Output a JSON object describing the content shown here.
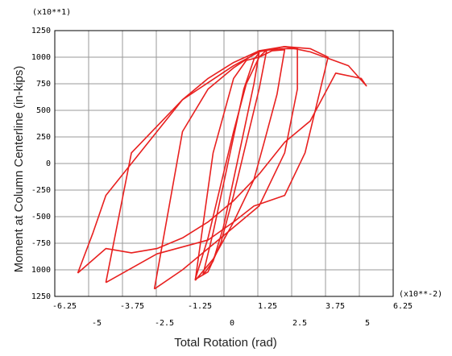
{
  "chart_data": {
    "type": "line",
    "title": "",
    "xlabel": "Total Rotation (rad)",
    "ylabel": "Moment at Column Centerline (in-kips)",
    "x_multiplier_label": "(x10**-2)",
    "y_multiplier_label": "(x10**1)",
    "xlim": [
      -0.07,
      0.0625
    ],
    "ylim": [
      -12500,
      12500
    ],
    "x_ticks_upper": [
      "-6.25",
      "-3.75",
      "-1.25",
      "1.25",
      "3.75",
      "6.25"
    ],
    "x_ticks_lower": [
      "-5",
      "-2.5",
      "0",
      "2.5",
      "5"
    ],
    "y_ticks": [
      "1250",
      "1000",
      "750",
      "500",
      "250",
      "0",
      "-250",
      "-500",
      "-750",
      "1000",
      "1250"
    ],
    "grid": true,
    "line_color": "#e8201f",
    "series": [
      {
        "x": [
          -0.012,
          -0.008,
          -0.004,
          0.0,
          0.004,
          0.008,
          0.01,
          0.008,
          0.004,
          0.0,
          -0.004,
          -0.008,
          -0.012
        ],
        "y": [
          -10500,
          -6500,
          -2000,
          2500,
          7000,
          9800,
          10400,
          7500,
          3000,
          -1500,
          -6000,
          -9200,
          -10500
        ]
      },
      {
        "x": [
          -0.015,
          -0.01,
          -0.005,
          0.0,
          0.005,
          0.01,
          0.013,
          0.01,
          0.005,
          0.0,
          -0.005,
          -0.01,
          -0.015
        ],
        "y": [
          -10900,
          -7000,
          -2000,
          3000,
          7500,
          10000,
          10700,
          7000,
          2000,
          -3000,
          -7500,
          -10200,
          -10900
        ]
      },
      {
        "x": [
          -0.015,
          -0.008,
          0.0,
          0.008,
          0.012,
          0.017,
          0.02,
          0.015,
          0.01,
          0.005,
          0.0,
          -0.008,
          -0.015
        ],
        "y": [
          -11000,
          -9000,
          -5500,
          -1500,
          2000,
          6500,
          10700,
          10600,
          10000,
          9700,
          8000,
          1000,
          -11000
        ]
      },
      {
        "x": [
          -0.031,
          -0.02,
          -0.01,
          0.0,
          0.01,
          0.02,
          0.025,
          0.025,
          0.02,
          0.01,
          0.0,
          -0.01,
          -0.02,
          -0.031
        ],
        "y": [
          -11800,
          -10000,
          -8000,
          -6000,
          -4000,
          1000,
          7000,
          10800,
          10800,
          10600,
          9000,
          7000,
          3000,
          -11800
        ]
      },
      {
        "x": [
          -0.05,
          -0.03,
          -0.01,
          0.0,
          0.008,
          0.02,
          0.028,
          0.032,
          0.037,
          0.03,
          0.02,
          0.01,
          0.0,
          -0.02,
          -0.04,
          -0.05
        ],
        "y": [
          -11200,
          -8500,
          -7200,
          -5500,
          -4000,
          -3000,
          1000,
          5000,
          10000,
          10800,
          11000,
          10500,
          9200,
          6000,
          1000,
          -11200
        ]
      },
      {
        "x": [
          -0.061,
          -0.05,
          -0.045,
          -0.04,
          -0.03,
          -0.02,
          -0.01,
          0.0,
          0.01,
          0.02,
          0.03,
          0.04,
          0.05,
          0.052,
          0.045,
          0.03,
          0.02,
          0.01,
          0.0,
          -0.01,
          -0.02,
          -0.03,
          -0.04,
          -0.05,
          -0.055,
          -0.061
        ],
        "y": [
          -10300,
          -8000,
          -8200,
          -8400,
          -8000,
          -7000,
          -5500,
          -3500,
          -1000,
          2000,
          4000,
          8500,
          8000,
          7300,
          9200,
          10500,
          11000,
          10600,
          9500,
          8000,
          6000,
          3000,
          0,
          -3000,
          -6500,
          -10300
        ]
      }
    ]
  }
}
